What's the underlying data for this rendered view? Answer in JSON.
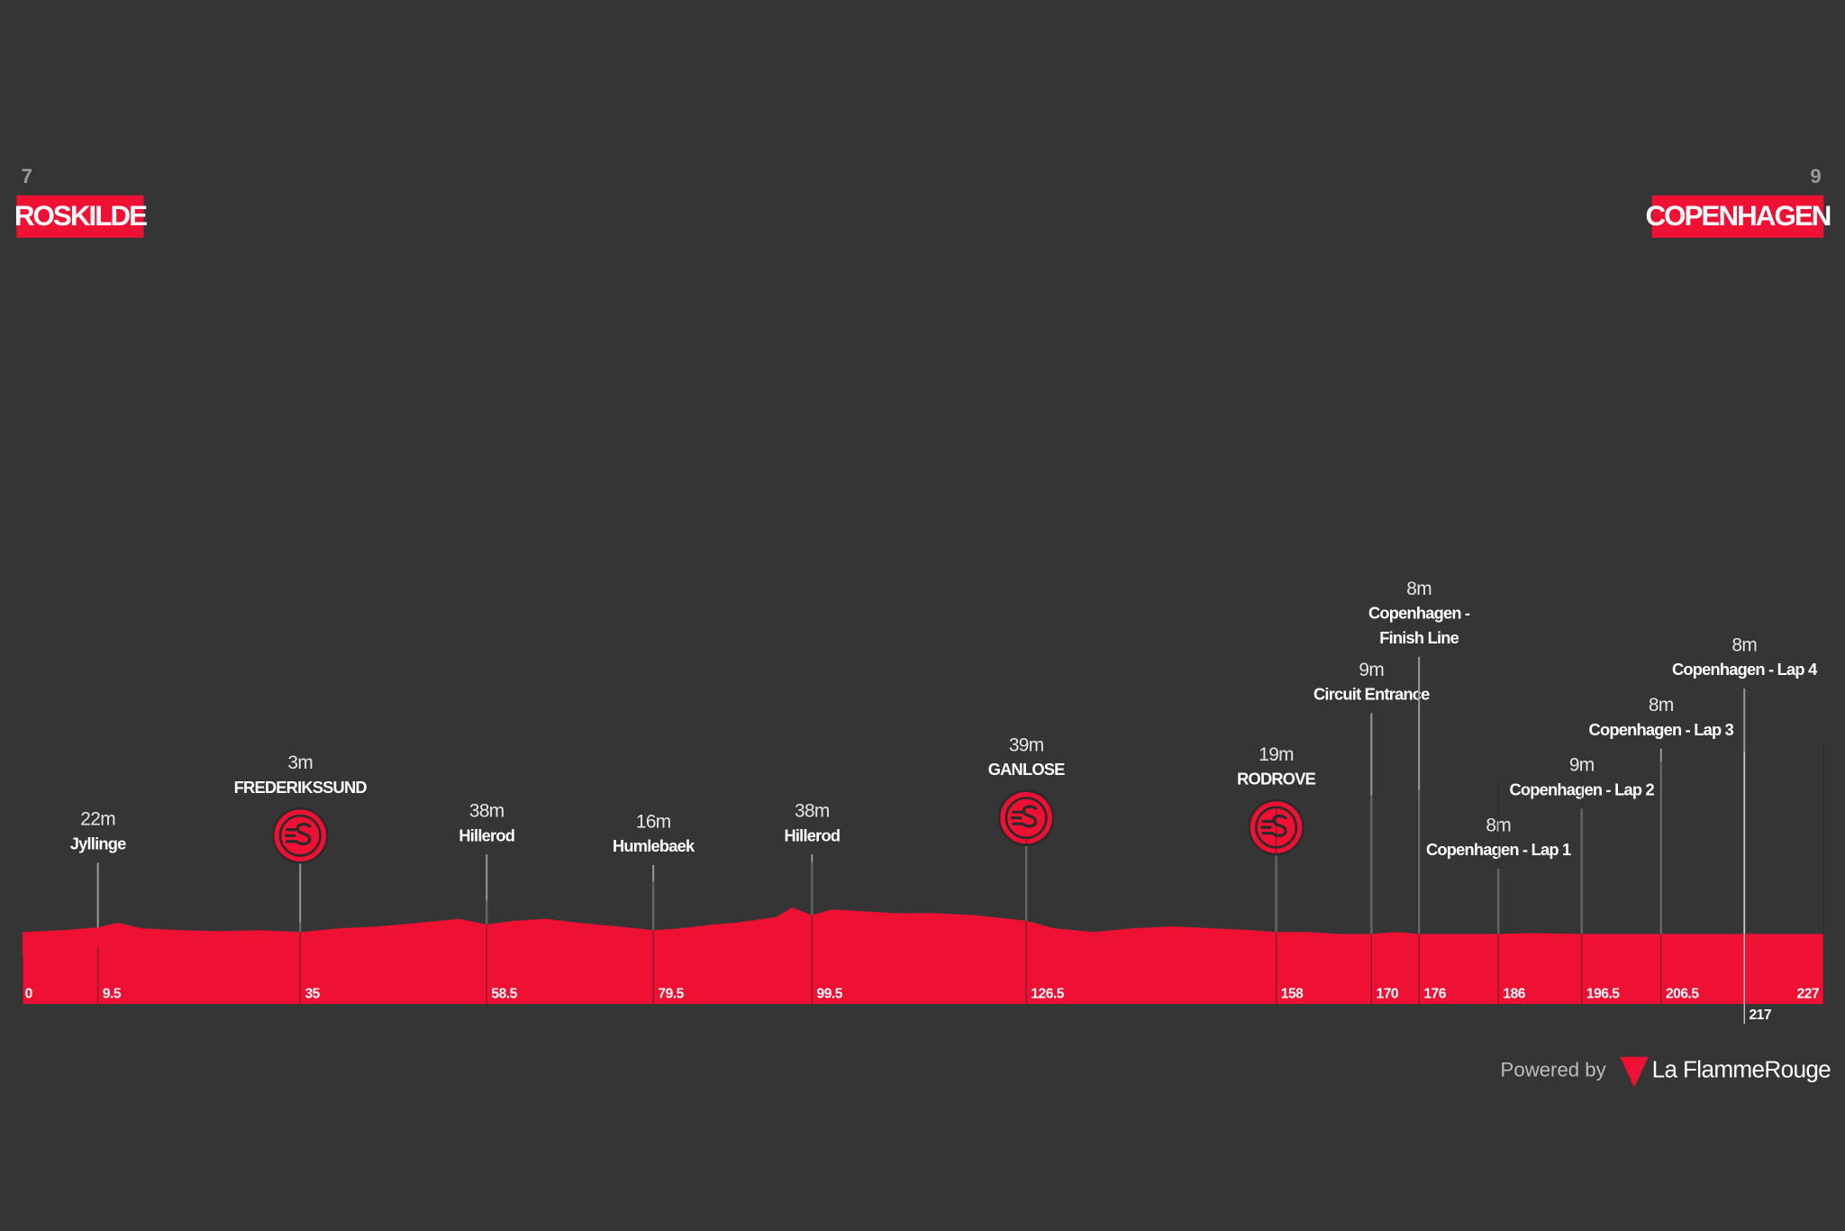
{
  "chart_data": {
    "type": "area",
    "color": "#ee1133",
    "start": {
      "elevation": 7,
      "name": "ROSKILDE"
    },
    "finish": {
      "elevation": 9,
      "name": "COPENHAGEN"
    },
    "xlim": [
      0,
      227
    ],
    "xticks": [
      0,
      9.5,
      35,
      58.5,
      79.5,
      99.5,
      126.5,
      158,
      170,
      176,
      186,
      196.5,
      206.5,
      217,
      227
    ],
    "x": [
      0,
      5,
      9.5,
      12,
      15,
      20,
      25,
      30,
      35,
      40,
      45,
      50,
      55,
      58.5,
      62,
      66,
      70,
      75,
      79.5,
      83,
      87,
      90,
      95,
      97,
      99.5,
      102,
      106,
      110,
      115,
      120,
      126.5,
      130,
      135,
      140,
      145,
      150,
      155,
      158,
      162,
      166,
      170,
      173,
      176,
      180,
      186,
      190,
      196.5,
      200,
      206.5,
      210,
      217,
      222,
      227
    ],
    "values": [
      10,
      12,
      15,
      20,
      14,
      12,
      11,
      12,
      10,
      14,
      16,
      20,
      24,
      18,
      22,
      24,
      20,
      16,
      12,
      14,
      18,
      20,
      26,
      36,
      28,
      34,
      32,
      30,
      30,
      28,
      22,
      14,
      10,
      14,
      16,
      14,
      12,
      10,
      10,
      8,
      8,
      10,
      8,
      8,
      8,
      9,
      8,
      8,
      8,
      8,
      8,
      8,
      8
    ],
    "waypoints": [
      {
        "km": 9.5,
        "elevation": 22,
        "elevation_label": "22m",
        "name": "Jyllinge"
      },
      {
        "km": 35,
        "elevation": 3,
        "elevation_label": "3m",
        "name": "FREDERIKSSUND",
        "sprint": true
      },
      {
        "km": 58.5,
        "elevation": 38,
        "elevation_label": "38m",
        "name": "Hillerod"
      },
      {
        "km": 79.5,
        "elevation": 16,
        "elevation_label": "16m",
        "name": "Humlebaek"
      },
      {
        "km": 99.5,
        "elevation": 38,
        "elevation_label": "38m",
        "name": "Hillerod"
      },
      {
        "km": 126.5,
        "elevation": 39,
        "elevation_label": "39m",
        "name": "GANLOSE",
        "sprint": true
      },
      {
        "km": 158,
        "elevation": 19,
        "elevation_label": "19m",
        "name": "RODROVE",
        "sprint": true
      },
      {
        "km": 170,
        "elevation": 9,
        "elevation_label": "9m",
        "name": "Circuit Entrance"
      },
      {
        "km": 176,
        "elevation": 8,
        "elevation_label": "8m",
        "name": [
          "Copenhagen -",
          "Finish Line"
        ]
      },
      {
        "km": 186,
        "elevation": 8,
        "elevation_label": "8m",
        "name": "Copenhagen - Lap 1"
      },
      {
        "km": 196.5,
        "elevation": 9,
        "elevation_label": "9m",
        "name": "Copenhagen - Lap 2"
      },
      {
        "km": 206.5,
        "elevation": 8,
        "elevation_label": "8m",
        "name": "Copenhagen - Lap 3"
      },
      {
        "km": 217,
        "elevation": 8,
        "elevation_label": "8m",
        "name": "Copenhagen - Lap 4"
      }
    ],
    "credit": "Powered by",
    "brand": "La FlammeRouge"
  }
}
